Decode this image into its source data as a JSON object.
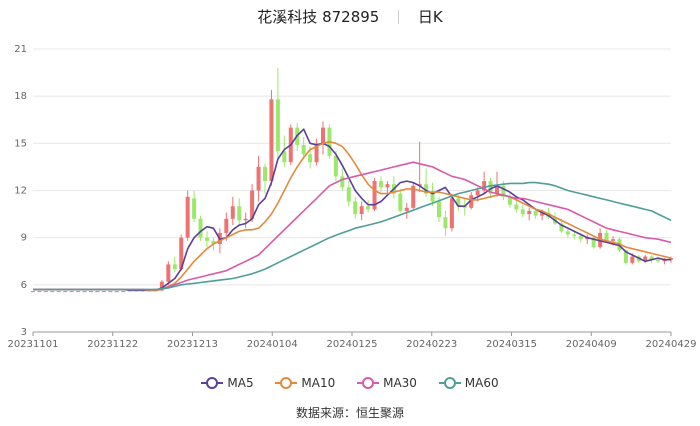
{
  "header": {
    "stock_name": "花溪科技",
    "stock_code": "872895",
    "period": "日K"
  },
  "source_text": "数据来源：恒生聚源",
  "chart_data": {
    "type": "candlestick",
    "ylim": [
      3,
      21
    ],
    "yticks": [
      3,
      6,
      9,
      12,
      15,
      18,
      21
    ],
    "x_tick_labels": [
      "20231101",
      "20231122",
      "20231213",
      "20240104",
      "20240125",
      "20240223",
      "20240315",
      "20240409",
      "20240429"
    ],
    "colors": {
      "up": "#ee7272",
      "down": "#9be86b",
      "MA5": "#5b3f9b",
      "MA10": "#e38a3c",
      "MA30": "#d85aa8",
      "MA60": "#4e9e9a"
    },
    "candles": [
      [
        5.6,
        5.6,
        5.6,
        5.6
      ],
      [
        5.6,
        5.6,
        5.6,
        5.6
      ],
      [
        5.6,
        5.6,
        5.6,
        5.6
      ],
      [
        5.6,
        5.6,
        5.6,
        5.6
      ],
      [
        5.6,
        5.6,
        5.6,
        5.6
      ],
      [
        5.6,
        5.6,
        5.6,
        5.6
      ],
      [
        5.6,
        5.6,
        5.6,
        5.6
      ],
      [
        5.6,
        5.6,
        5.6,
        5.6
      ],
      [
        5.6,
        5.6,
        5.6,
        5.6
      ],
      [
        5.6,
        5.6,
        5.6,
        5.6
      ],
      [
        5.6,
        5.6,
        5.6,
        5.6
      ],
      [
        5.6,
        5.6,
        5.6,
        5.6
      ],
      [
        5.6,
        5.6,
        5.6,
        5.6
      ],
      [
        5.6,
        5.6,
        5.6,
        5.6
      ],
      [
        5.6,
        5.6,
        5.6,
        5.6
      ],
      [
        5.6,
        5.65,
        5.6,
        5.65
      ],
      [
        5.65,
        5.7,
        5.6,
        5.65
      ],
      [
        5.65,
        5.7,
        5.6,
        5.65
      ],
      [
        5.65,
        5.7,
        5.6,
        5.65
      ],
      [
        5.65,
        5.7,
        5.6,
        5.65
      ],
      [
        5.65,
        6.3,
        5.6,
        6.2
      ],
      [
        6.2,
        7.5,
        6.0,
        7.3
      ],
      [
        7.3,
        7.8,
        6.8,
        7.0
      ],
      [
        7.0,
        9.2,
        6.9,
        9.0
      ],
      [
        9.0,
        12.0,
        8.8,
        11.6
      ],
      [
        11.5,
        12.0,
        10.0,
        10.2
      ],
      [
        10.2,
        10.4,
        8.8,
        9.0
      ],
      [
        9.0,
        9.4,
        8.4,
        8.8
      ],
      [
        8.8,
        9.0,
        8.2,
        8.6
      ],
      [
        8.6,
        9.6,
        8.0,
        9.3
      ],
      [
        9.3,
        10.6,
        8.8,
        10.2
      ],
      [
        10.2,
        11.6,
        9.8,
        11.0
      ],
      [
        11.0,
        11.5,
        9.8,
        10.1
      ],
      [
        10.1,
        10.6,
        9.6,
        10.2
      ],
      [
        10.2,
        12.4,
        10.0,
        12.0
      ],
      [
        12.0,
        14.2,
        11.3,
        13.5
      ],
      [
        13.5,
        13.7,
        11.8,
        12.6
      ],
      [
        12.6,
        18.4,
        12.3,
        17.8
      ],
      [
        17.8,
        19.8,
        14.0,
        14.5
      ],
      [
        14.5,
        15.5,
        13.5,
        13.8
      ],
      [
        13.8,
        16.2,
        13.6,
        16.0
      ],
      [
        16.0,
        16.3,
        14.5,
        14.9
      ],
      [
        14.9,
        15.4,
        14.0,
        14.3
      ],
      [
        14.3,
        14.8,
        13.4,
        13.8
      ],
      [
        13.8,
        15.3,
        13.6,
        15.0
      ],
      [
        15.0,
        16.4,
        14.3,
        16.0
      ],
      [
        16.0,
        16.2,
        14.0,
        14.2
      ],
      [
        14.2,
        14.5,
        12.6,
        12.9
      ],
      [
        12.9,
        13.4,
        12.0,
        12.2
      ],
      [
        12.2,
        12.6,
        11.0,
        11.3
      ],
      [
        11.3,
        11.6,
        10.2,
        10.5
      ],
      [
        10.5,
        11.3,
        10.1,
        11.0
      ],
      [
        11.0,
        11.4,
        10.6,
        10.8
      ],
      [
        10.8,
        12.8,
        10.7,
        12.6
      ],
      [
        12.6,
        12.9,
        11.9,
        12.2
      ],
      [
        12.2,
        12.6,
        11.8,
        12.4
      ],
      [
        12.4,
        12.9,
        11.5,
        11.8
      ],
      [
        11.8,
        12.1,
        10.6,
        10.7
      ],
      [
        10.7,
        11.2,
        10.2,
        10.9
      ],
      [
        10.9,
        12.5,
        10.8,
        12.3
      ],
      [
        12.3,
        15.1,
        11.9,
        12.4
      ],
      [
        12.4,
        13.4,
        11.6,
        11.8
      ],
      [
        11.8,
        12.5,
        11.0,
        11.3
      ],
      [
        11.3,
        11.6,
        10.0,
        10.3
      ],
      [
        10.3,
        10.7,
        9.1,
        9.6
      ],
      [
        9.6,
        11.8,
        9.4,
        11.5
      ],
      [
        11.5,
        11.7,
        10.7,
        11.0
      ],
      [
        11.0,
        11.5,
        10.4,
        10.9
      ],
      [
        10.9,
        11.9,
        10.8,
        11.7
      ],
      [
        11.7,
        12.2,
        11.3,
        12.0
      ],
      [
        12.0,
        13.2,
        11.8,
        12.6
      ],
      [
        12.6,
        12.8,
        11.5,
        11.8
      ],
      [
        11.8,
        13.2,
        11.6,
        12.3
      ],
      [
        12.3,
        12.6,
        11.4,
        11.6
      ],
      [
        11.6,
        11.9,
        10.9,
        11.1
      ],
      [
        11.1,
        11.4,
        10.6,
        10.8
      ],
      [
        10.8,
        11.1,
        10.3,
        10.5
      ],
      [
        10.5,
        10.9,
        10.1,
        10.7
      ],
      [
        10.7,
        10.9,
        10.2,
        10.4
      ],
      [
        10.4,
        10.8,
        10.1,
        10.6
      ],
      [
        10.6,
        10.9,
        10.2,
        10.3
      ],
      [
        10.3,
        10.6,
        9.8,
        9.9
      ],
      [
        9.9,
        10.2,
        9.3,
        9.4
      ],
      [
        9.4,
        9.7,
        9.0,
        9.2
      ],
      [
        9.2,
        9.5,
        8.9,
        9.1
      ],
      [
        9.1,
        9.3,
        8.7,
        8.9
      ],
      [
        8.9,
        9.2,
        8.6,
        9.0
      ],
      [
        9.0,
        9.1,
        8.3,
        8.4
      ],
      [
        8.4,
        9.6,
        8.3,
        9.3
      ],
      [
        9.3,
        9.5,
        8.7,
        8.8
      ],
      [
        8.8,
        9.1,
        8.5,
        8.9
      ],
      [
        8.9,
        9.0,
        8.1,
        8.2
      ],
      [
        8.2,
        8.3,
        7.3,
        7.4
      ],
      [
        7.4,
        8.0,
        7.3,
        7.8
      ],
      [
        7.8,
        7.9,
        7.4,
        7.5
      ],
      [
        7.5,
        7.9,
        7.4,
        7.8
      ],
      [
        7.8,
        7.9,
        7.4,
        7.6
      ],
      [
        7.6,
        7.8,
        7.4,
        7.5
      ],
      [
        7.5,
        7.7,
        7.3,
        7.6
      ],
      [
        7.6,
        7.8,
        7.4,
        7.7
      ]
    ],
    "series": [
      {
        "name": "MA5",
        "values": [
          5.7,
          5.7,
          5.7,
          5.7,
          5.7,
          5.7,
          5.7,
          5.7,
          5.7,
          5.7,
          5.7,
          5.7,
          5.7,
          5.7,
          5.7,
          5.65,
          5.65,
          5.65,
          5.65,
          5.65,
          5.8,
          6.1,
          6.4,
          7.0,
          8.3,
          9.0,
          9.4,
          9.7,
          9.6,
          8.9,
          9.0,
          9.5,
          9.8,
          9.9,
          10.2,
          11.1,
          11.5,
          12.5,
          14.0,
          14.6,
          14.9,
          15.5,
          15.9,
          15.0,
          14.9,
          15.0,
          14.8,
          14.3,
          13.6,
          12.8,
          12.0,
          11.5,
          11.1,
          11.1,
          11.3,
          11.7,
          12.1,
          12.5,
          12.6,
          12.5,
          12.3,
          12.0,
          11.8,
          12.0,
          12.2,
          11.6,
          11.0,
          11.0,
          11.4,
          11.6,
          11.8,
          12.1,
          12.3,
          12.1,
          11.9,
          11.6,
          11.4,
          11.1,
          10.8,
          10.6,
          10.4,
          10.1,
          9.8,
          9.6,
          9.4,
          9.2,
          9.0,
          8.9,
          8.8,
          8.7,
          8.6,
          8.5,
          8.1,
          7.9,
          7.7,
          7.5,
          7.6,
          7.7,
          7.6,
          7.6
        ]
      },
      {
        "name": "MA10",
        "values": [
          5.7,
          5.7,
          5.7,
          5.7,
          5.7,
          5.7,
          5.7,
          5.7,
          5.7,
          5.7,
          5.7,
          5.7,
          5.7,
          5.7,
          5.7,
          5.7,
          5.7,
          5.7,
          5.65,
          5.65,
          5.7,
          5.9,
          6.1,
          6.5,
          7.0,
          7.5,
          7.9,
          8.3,
          8.6,
          8.8,
          9.0,
          9.2,
          9.4,
          9.5,
          9.5,
          9.6,
          10.0,
          10.5,
          11.2,
          12.0,
          12.8,
          13.5,
          14.1,
          14.6,
          14.8,
          15.0,
          15.1,
          15.0,
          14.8,
          14.3,
          13.7,
          13.0,
          12.4,
          12.0,
          11.8,
          11.8,
          11.9,
          12.0,
          12.1,
          12.1,
          12.0,
          11.9,
          11.9,
          11.9,
          11.8,
          11.7,
          11.6,
          11.5,
          11.4,
          11.4,
          11.5,
          11.6,
          11.7,
          11.7,
          11.6,
          11.4,
          11.2,
          11.0,
          10.8,
          10.7,
          10.5,
          10.3,
          10.1,
          9.9,
          9.7,
          9.5,
          9.3,
          9.1,
          8.9,
          8.8,
          8.7,
          8.6,
          8.4,
          8.3,
          8.2,
          8.1,
          8.0,
          7.9,
          7.8,
          7.7
        ]
      },
      {
        "name": "MA30",
        "values": [
          5.7,
          5.7,
          5.7,
          5.7,
          5.7,
          5.7,
          5.7,
          5.7,
          5.7,
          5.7,
          5.7,
          5.7,
          5.7,
          5.7,
          5.7,
          5.7,
          5.7,
          5.7,
          5.7,
          5.7,
          5.75,
          5.85,
          6.0,
          6.15,
          6.3,
          6.4,
          6.5,
          6.6,
          6.7,
          6.8,
          6.9,
          7.1,
          7.3,
          7.5,
          7.7,
          7.9,
          8.3,
          8.7,
          9.1,
          9.5,
          9.9,
          10.3,
          10.7,
          11.1,
          11.5,
          11.9,
          12.3,
          12.5,
          12.7,
          12.8,
          12.9,
          13.0,
          13.1,
          13.2,
          13.3,
          13.4,
          13.5,
          13.6,
          13.7,
          13.8,
          13.7,
          13.6,
          13.5,
          13.3,
          13.1,
          12.9,
          12.8,
          12.7,
          12.5,
          12.3,
          12.1,
          11.9,
          11.8,
          11.7,
          11.6,
          11.5,
          11.5,
          11.4,
          11.3,
          11.2,
          11.1,
          11.0,
          10.9,
          10.8,
          10.6,
          10.4,
          10.2,
          10.0,
          9.8,
          9.6,
          9.5,
          9.4,
          9.3,
          9.2,
          9.1,
          9.0,
          8.95,
          8.9,
          8.8,
          8.7
        ]
      },
      {
        "name": "MA60",
        "values": [
          5.7,
          5.7,
          5.7,
          5.7,
          5.7,
          5.7,
          5.7,
          5.7,
          5.7,
          5.7,
          5.7,
          5.7,
          5.7,
          5.7,
          5.7,
          5.7,
          5.7,
          5.7,
          5.7,
          5.7,
          5.75,
          5.8,
          5.9,
          6.0,
          6.05,
          6.1,
          6.15,
          6.2,
          6.25,
          6.3,
          6.35,
          6.4,
          6.5,
          6.6,
          6.7,
          6.85,
          7.0,
          7.2,
          7.4,
          7.6,
          7.8,
          8.0,
          8.2,
          8.4,
          8.6,
          8.8,
          9.0,
          9.15,
          9.3,
          9.45,
          9.6,
          9.7,
          9.8,
          9.9,
          10.0,
          10.15,
          10.3,
          10.45,
          10.6,
          10.75,
          10.9,
          11.05,
          11.2,
          11.35,
          11.5,
          11.65,
          11.8,
          11.9,
          12.0,
          12.1,
          12.2,
          12.3,
          12.35,
          12.4,
          12.45,
          12.45,
          12.45,
          12.5,
          12.5,
          12.45,
          12.4,
          12.3,
          12.15,
          12.0,
          11.9,
          11.8,
          11.7,
          11.6,
          11.5,
          11.4,
          11.3,
          11.2,
          11.1,
          11.0,
          10.9,
          10.8,
          10.7,
          10.5,
          10.3,
          10.1
        ]
      }
    ]
  }
}
